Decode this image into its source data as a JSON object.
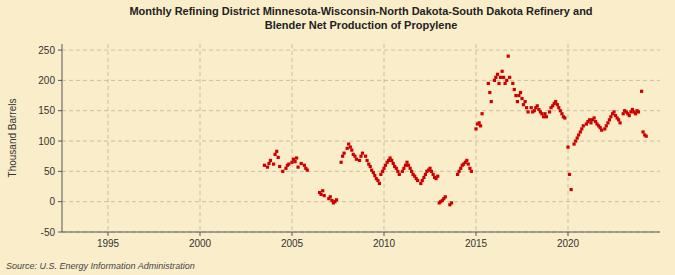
{
  "chart_data": {
    "type": "scatter",
    "title": "Monthly Refining District Minnesota-Wisconsin-North Dakota-South Dakota Refinery and\nBlender Net Production of Propylene",
    "ylabel": "Thousand Barrels",
    "annotation": "Source: U.S. Energy Information Administration",
    "color": "#cc0000",
    "marker": "square",
    "grid": true,
    "xlim": [
      1992.5,
      2025.0
    ],
    "ylim": [
      -50,
      260
    ],
    "xticks": [
      1995,
      2000,
      2005,
      2010,
      2015,
      2020
    ],
    "yticks": [
      -50,
      0,
      50,
      100,
      150,
      200,
      250
    ],
    "x": [
      2003.5,
      2003.67,
      2003.75,
      2003.83,
      2004.0,
      2004.08,
      2004.17,
      2004.25,
      2004.33,
      2004.5,
      2004.67,
      2004.75,
      2004.83,
      2005.0,
      2005.08,
      2005.17,
      2005.25,
      2005.33,
      2005.5,
      2005.67,
      2005.75,
      2005.83,
      2006.5,
      2006.58,
      2006.67,
      2006.75,
      2007.0,
      2007.08,
      2007.17,
      2007.25,
      2007.33,
      2007.42,
      2007.67,
      2007.75,
      2007.83,
      2008.0,
      2008.08,
      2008.17,
      2008.25,
      2008.33,
      2008.42,
      2008.5,
      2008.67,
      2008.75,
      2008.83,
      2009.0,
      2009.08,
      2009.17,
      2009.25,
      2009.33,
      2009.42,
      2009.5,
      2009.58,
      2009.67,
      2009.75,
      2009.83,
      2009.92,
      2010.0,
      2010.08,
      2010.17,
      2010.25,
      2010.33,
      2010.42,
      2010.5,
      2010.58,
      2010.67,
      2010.75,
      2010.83,
      2011.0,
      2011.08,
      2011.17,
      2011.25,
      2011.33,
      2011.42,
      2011.5,
      2011.58,
      2011.67,
      2011.75,
      2011.83,
      2012.0,
      2012.08,
      2012.17,
      2012.25,
      2012.33,
      2012.42,
      2012.5,
      2012.58,
      2012.67,
      2012.75,
      2012.83,
      2012.92,
      2013.0,
      2013.08,
      2013.17,
      2013.25,
      2013.33,
      2013.58,
      2013.67,
      2014.0,
      2014.08,
      2014.17,
      2014.25,
      2014.33,
      2014.42,
      2014.5,
      2014.58,
      2014.67,
      2014.75,
      2015.0,
      2015.08,
      2015.17,
      2015.25,
      2015.33,
      2015.67,
      2015.75,
      2015.83,
      2016.0,
      2016.08,
      2016.17,
      2016.25,
      2016.33,
      2016.42,
      2016.5,
      2016.58,
      2016.67,
      2016.75,
      2016.83,
      2017.0,
      2017.08,
      2017.17,
      2017.25,
      2017.33,
      2017.42,
      2017.5,
      2017.58,
      2017.67,
      2017.75,
      2017.83,
      2018.0,
      2018.08,
      2018.17,
      2018.25,
      2018.33,
      2018.42,
      2018.5,
      2018.58,
      2018.67,
      2018.75,
      2018.83,
      2019.0,
      2019.08,
      2019.17,
      2019.25,
      2019.33,
      2019.42,
      2019.5,
      2019.58,
      2019.67,
      2019.75,
      2019.83,
      2020.0,
      2020.08,
      2020.17,
      2020.33,
      2020.42,
      2020.5,
      2020.58,
      2020.67,
      2020.75,
      2020.83,
      2021.0,
      2021.08,
      2021.17,
      2021.25,
      2021.33,
      2021.42,
      2021.5,
      2021.58,
      2021.67,
      2021.75,
      2021.83,
      2022.0,
      2022.08,
      2022.17,
      2022.25,
      2022.33,
      2022.42,
      2022.5,
      2022.58,
      2022.67,
      2022.75,
      2022.83,
      2023.0,
      2023.08,
      2023.17,
      2023.25,
      2023.33,
      2023.42,
      2023.5,
      2023.58,
      2023.67,
      2023.75,
      2023.83,
      2024.0,
      2024.08,
      2024.17,
      2024.25
    ],
    "values": [
      60,
      57,
      63,
      68,
      62,
      78,
      83,
      73,
      58,
      50,
      55,
      60,
      62,
      65,
      70,
      66,
      72,
      57,
      63,
      60,
      55,
      52,
      15,
      12,
      18,
      10,
      5,
      8,
      2,
      -2,
      0,
      3,
      65,
      75,
      80,
      88,
      95,
      90,
      85,
      78,
      75,
      70,
      68,
      75,
      80,
      75,
      68,
      62,
      58,
      52,
      48,
      43,
      38,
      35,
      30,
      45,
      50,
      55,
      60,
      65,
      68,
      72,
      68,
      63,
      58,
      55,
      50,
      45,
      50,
      55,
      60,
      65,
      60,
      55,
      50,
      45,
      42,
      38,
      35,
      30,
      35,
      40,
      45,
      50,
      52,
      55,
      50,
      45,
      40,
      38,
      42,
      -2,
      0,
      2,
      5,
      8,
      -5,
      -2,
      45,
      50,
      55,
      60,
      62,
      65,
      68,
      62,
      55,
      50,
      120,
      128,
      130,
      125,
      145,
      195,
      180,
      165,
      200,
      205,
      210,
      195,
      205,
      215,
      205,
      195,
      200,
      240,
      205,
      195,
      185,
      175,
      165,
      175,
      180,
      170,
      160,
      165,
      155,
      148,
      155,
      148,
      150,
      155,
      158,
      152,
      148,
      145,
      140,
      145,
      140,
      148,
      155,
      158,
      162,
      165,
      160,
      155,
      150,
      145,
      140,
      138,
      90,
      45,
      20,
      95,
      100,
      105,
      110,
      115,
      120,
      125,
      128,
      132,
      135,
      130,
      135,
      138,
      132,
      128,
      125,
      122,
      118,
      120,
      125,
      130,
      135,
      140,
      145,
      148,
      142,
      138,
      135,
      130,
      145,
      150,
      148,
      145,
      142,
      148,
      152,
      148,
      145,
      150,
      148,
      182,
      115,
      110,
      108
    ]
  }
}
